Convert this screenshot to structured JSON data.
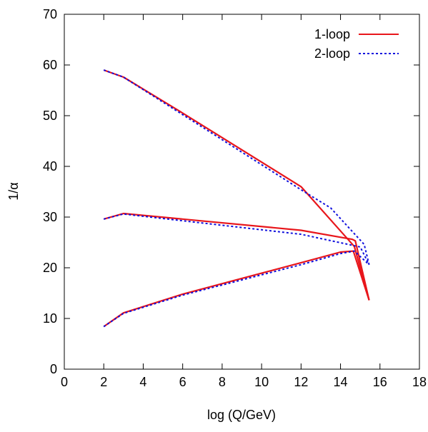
{
  "chart_data": {
    "type": "line",
    "xlabel": "log (Q/GeV)",
    "ylabel": "1/α",
    "xlim": [
      0,
      18
    ],
    "ylim": [
      0,
      70
    ],
    "xticks": [
      0,
      2,
      4,
      6,
      8,
      10,
      12,
      14,
      16,
      18
    ],
    "yticks": [
      0,
      10,
      20,
      30,
      40,
      50,
      60,
      70
    ],
    "grid": false,
    "legend_position": "top-right",
    "series": [
      {
        "name": "1-loop",
        "color": "#e8161b",
        "style": "solid",
        "lines": [
          {
            "x": [
              2,
              3,
              6,
              12,
              14.7,
              15.45
            ],
            "y": [
              59.0,
              57.6,
              50.5,
              36.0,
              24.2,
              13.6
            ]
          },
          {
            "x": [
              2,
              3,
              12,
              14.6,
              14.75,
              15.45
            ],
            "y": [
              29.6,
              30.7,
              27.4,
              25.6,
              25.3,
              13.6
            ]
          },
          {
            "x": [
              2,
              3,
              6,
              12,
              14,
              14.65,
              15.45
            ],
            "y": [
              8.4,
              11.1,
              14.8,
              21.0,
              23.1,
              23.3,
              13.6
            ]
          }
        ]
      },
      {
        "name": "2-loop",
        "color": "#1010dd",
        "style": "dotted",
        "lines": [
          {
            "x": [
              2,
              3,
              6,
              12,
              13.5,
              15.2,
              15.45
            ],
            "y": [
              59.0,
              57.6,
              50.2,
              35.4,
              31.8,
              24.6,
              20.6
            ]
          },
          {
            "x": [
              2,
              3,
              12,
              15.0,
              15.45
            ],
            "y": [
              29.6,
              30.6,
              26.6,
              24.1,
              20.6
            ]
          },
          {
            "x": [
              2,
              3,
              6,
              12,
              14,
              14.7,
              15.45
            ],
            "y": [
              8.4,
              11.0,
              14.6,
              20.6,
              22.8,
              23.3,
              20.6
            ]
          }
        ]
      }
    ]
  }
}
